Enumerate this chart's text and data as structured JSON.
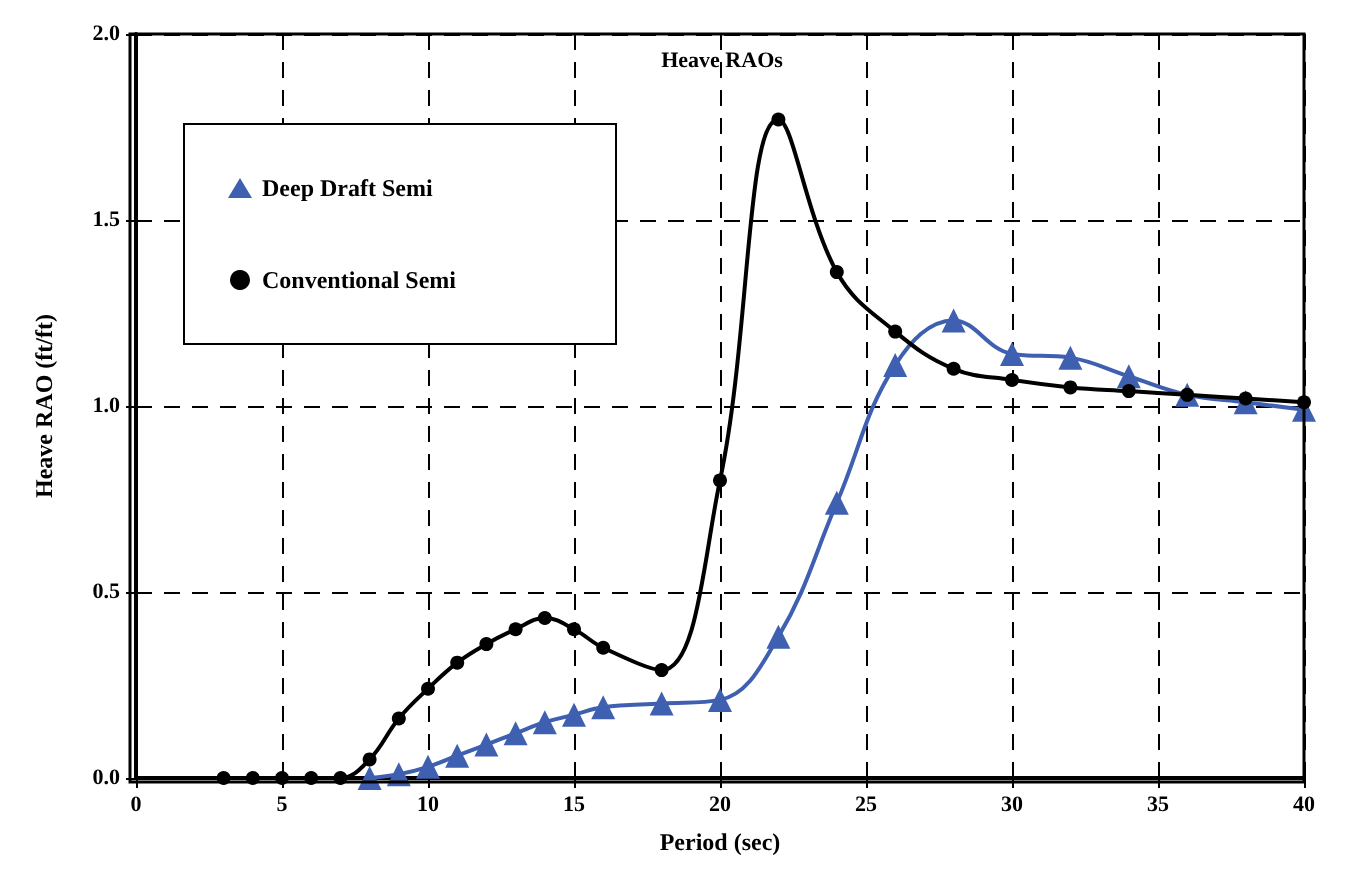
{
  "chart_data": {
    "type": "line",
    "title": "Heave RAOs",
    "xlabel": "Period (sec)",
    "ylabel": "Heave RAO (ft/ft)",
    "xlim": [
      0,
      40
    ],
    "xticks": [
      0,
      5,
      10,
      15,
      20,
      25,
      30,
      35,
      40
    ],
    "ylim": [
      0,
      2
    ],
    "yticks": [
      {
        "value": 0,
        "label": "0.0"
      },
      {
        "value": 0.5,
        "label": "0.5"
      },
      {
        "value": 1,
        "label": "1.0"
      },
      {
        "value": 1.5,
        "label": "1.5"
      },
      {
        "value": 2,
        "label": "2.0"
      }
    ],
    "grid": true,
    "legend": "top left",
    "line_style": "solid",
    "series": [
      {
        "name": "Deep Draft Semi",
        "color": "#3f5fb0",
        "marker": "triangle",
        "x": [
          8,
          9,
          10,
          11,
          12,
          13,
          14,
          15,
          16,
          18,
          20,
          22,
          24,
          26,
          28,
          30,
          32,
          34,
          36,
          38,
          40
        ],
        "values": [
          0,
          0.01,
          0.03,
          0.06,
          0.09,
          0.12,
          0.15,
          0.17,
          0.19,
          0.2,
          0.21,
          0.38,
          0.74,
          1.11,
          1.23,
          1.14,
          1.13,
          1.08,
          1.03,
          1.01,
          0.99
        ]
      },
      {
        "name": "Conventional Semi",
        "color": "#000000",
        "marker": "circle",
        "x": [
          3,
          4,
          5,
          6,
          7,
          8,
          9,
          10,
          11,
          12,
          13,
          14,
          15,
          16,
          18,
          20,
          22,
          24,
          26,
          28,
          30,
          32,
          34,
          36,
          38,
          40
        ],
        "values": [
          0,
          0,
          0,
          0,
          0,
          0.05,
          0.16,
          0.24,
          0.31,
          0.36,
          0.4,
          0.43,
          0.4,
          0.35,
          0.29,
          0.8,
          1.77,
          1.36,
          1.2,
          1.1,
          1.07,
          1.05,
          1.04,
          1.03,
          1.02,
          1.01
        ]
      }
    ]
  }
}
